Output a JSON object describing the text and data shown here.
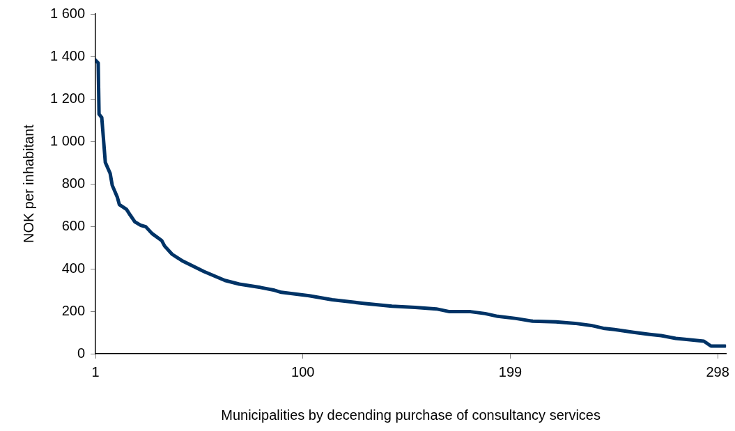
{
  "chart_data": {
    "type": "line",
    "xlabel": "Municipalities by decending purchase of consultancy services",
    "ylabel": "NOK per inhabitant",
    "xlim": [
      1,
      302
    ],
    "xticks": [
      1,
      100,
      199,
      298
    ],
    "ylim": [
      0,
      1600
    ],
    "yticks": [
      0,
      {
        "value": 200,
        "label": "200"
      },
      {
        "value": 400,
        "label": "400"
      },
      {
        "value": 600,
        "label": "600"
      },
      {
        "value": 800,
        "label": "800"
      },
      {
        "value": 1000,
        "label": "1 000"
      },
      {
        "value": 1200,
        "label": "1 200"
      },
      {
        "value": 1400,
        "label": "1 400"
      },
      {
        "value": 1600,
        "label": "1 600"
      }
    ],
    "grid": false,
    "legend": false,
    "marker": "none",
    "line_style": "solid",
    "series": [
      {
        "color": "#003366",
        "x": [
          1,
          2.3,
          2.7,
          4,
          5.7,
          8,
          9,
          11.4,
          12.4,
          15.8,
          17.5,
          19.8,
          22.5,
          25,
          28,
          32.6,
          34,
          37.6,
          42.7,
          52.8,
          62.8,
          69.6,
          79.7,
          86.4,
          89.7,
          103,
          114,
          129,
          142.5,
          153.6,
          163.7,
          170,
          180,
          187,
          193,
          201.7,
          209.7,
          220.8,
          229.9,
          237.6,
          243.4,
          248.7,
          257.8,
          265.5,
          271,
          278,
          282.3,
          291.4,
          294.8,
          301.5
        ],
        "values": [
          1382,
          1369,
          1128,
          1112,
          901,
          849,
          793,
          738,
          702,
          680,
          654,
          621,
          605,
          598,
          566,
          533,
          507,
          468,
          436,
          387,
          345,
          328,
          312,
          299,
          289,
          273,
          254,
          237,
          224,
          218,
          211,
          198,
          198,
          189,
          176,
          166,
          153,
          150,
          143,
          133,
          120,
          114,
          101,
          91,
          85,
          72,
          68,
          59,
          36,
          36
        ]
      }
    ]
  }
}
